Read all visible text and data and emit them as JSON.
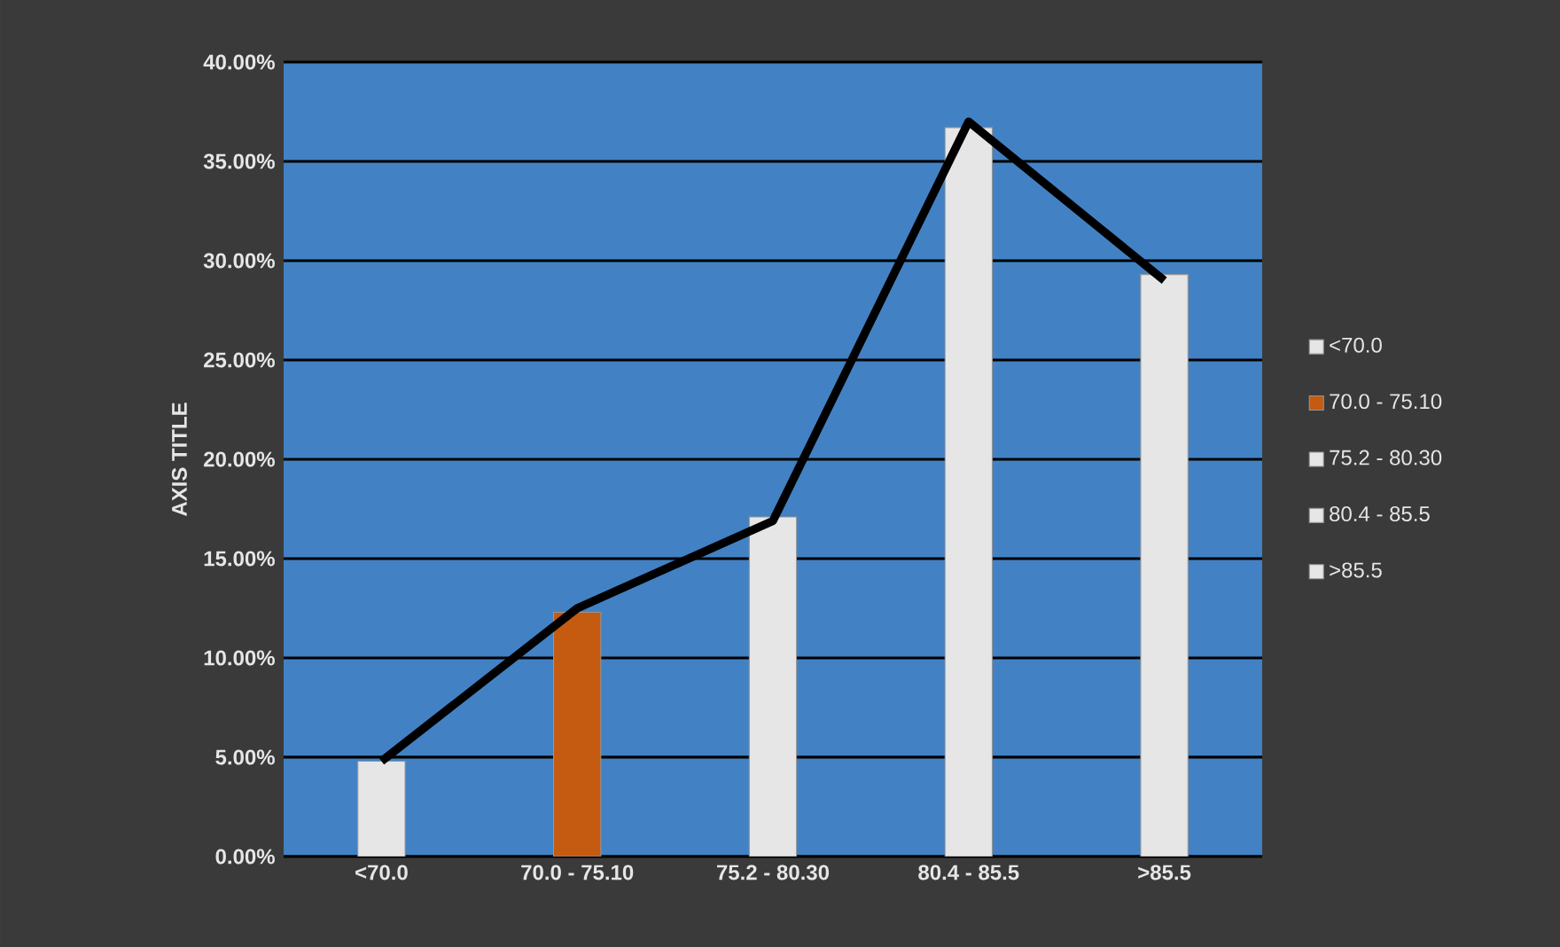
{
  "chart_data": {
    "type": "bar",
    "ylabel": "AXIS TITLE",
    "categories": [
      "<70.0",
      "70.0 - 75.10",
      "75.2 - 80.30",
      "80.4 - 85.5",
      ">85.5"
    ],
    "series": [
      {
        "name": "<70.0",
        "color": "#e6e6e6",
        "values": [
          4.8,
          null,
          null,
          null,
          null
        ]
      },
      {
        "name": "70.0 - 75.10",
        "color": "#c55a11",
        "values": [
          null,
          12.3,
          null,
          null,
          null
        ]
      },
      {
        "name": "75.2 - 80.30",
        "color": "#e6e6e6",
        "values": [
          null,
          null,
          17.1,
          null,
          null
        ]
      },
      {
        "name": "80.4 - 85.5",
        "color": "#e6e6e6",
        "values": [
          null,
          null,
          null,
          36.7,
          null
        ]
      },
      {
        "name": ">85.5",
        "color": "#e6e6e6",
        "values": [
          null,
          null,
          null,
          null,
          29.3
        ]
      },
      {
        "type": "line",
        "color": "#000000",
        "values": [
          4.8,
          12.5,
          16.9,
          37.0,
          29.0
        ]
      }
    ],
    "ylim": [
      0,
      40
    ],
    "yticks": [
      {
        "value": 0,
        "label": "0.00%"
      },
      {
        "value": 5,
        "label": "5.00%"
      },
      {
        "value": 10,
        "label": "10.00%"
      },
      {
        "value": 15,
        "label": "15.00%"
      },
      {
        "value": 20,
        "label": "20.00%"
      },
      {
        "value": 25,
        "label": "25.00%"
      },
      {
        "value": 30,
        "label": "30.00%"
      },
      {
        "value": 35,
        "label": "35.00%"
      },
      {
        "value": 40,
        "label": "40.00%"
      }
    ],
    "grid": "y",
    "legend": "right",
    "marker": "none"
  }
}
